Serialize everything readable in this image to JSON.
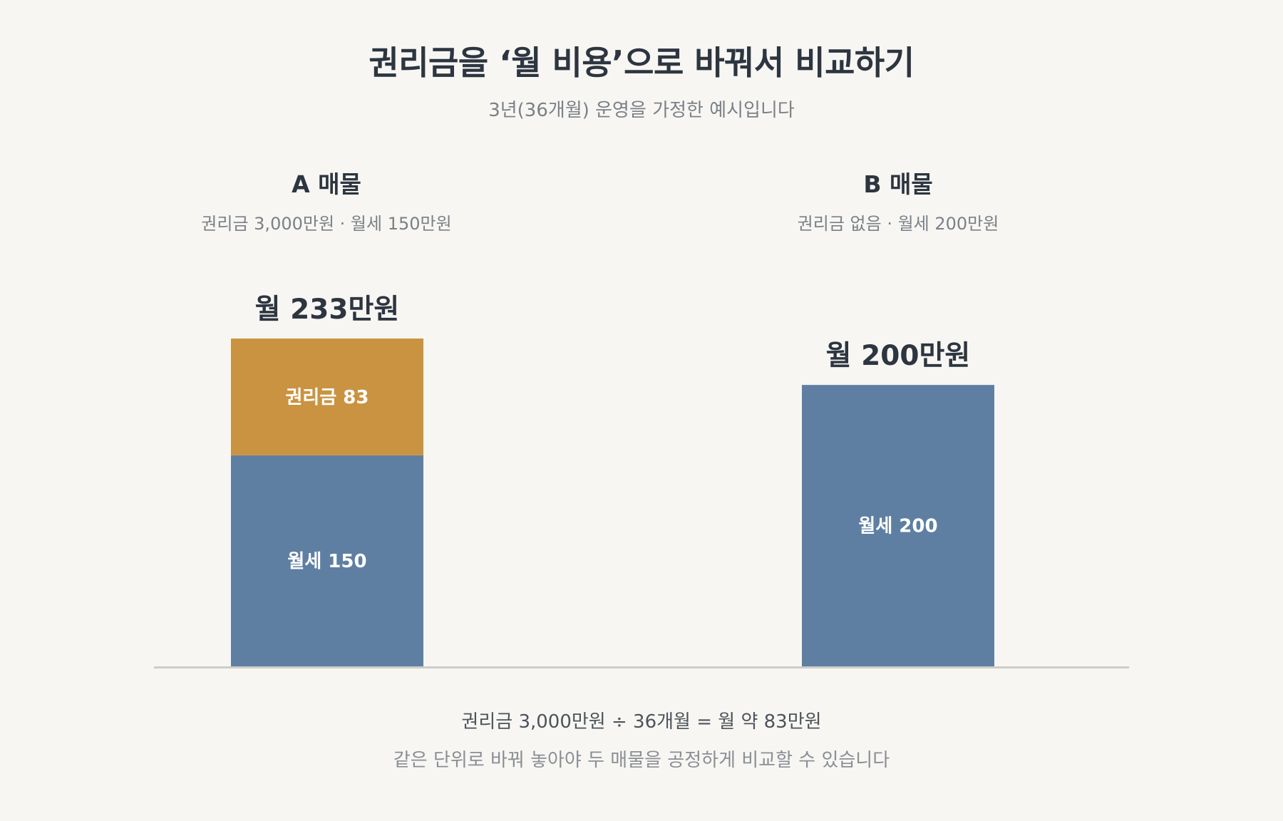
{
  "header": {
    "title": "권리금을 ‘월 비용’으로 바꿔서 비교하기",
    "subtitle": "3년(36개월) 운영을 가정한 예시입니다"
  },
  "columns": [
    {
      "name": "A 매물",
      "desc": "권리금 3,000만원 · 월세 150만원"
    },
    {
      "name": "B 매물",
      "desc": "권리금 없음 · 월세 200만원"
    }
  ],
  "footer": {
    "formula": "권리금 3,000만원 ÷ 36개월 = 월 약 83만원",
    "note": "같은 단위로 바꿔 놓아야 두 매물을 공정하게 비교할 수 있습니다"
  },
  "chart_data": {
    "type": "bar",
    "stacked": true,
    "categories": [
      "A 매물",
      "B 매물"
    ],
    "series": [
      {
        "name": "월세",
        "values": [
          150,
          200
        ],
        "color": "#5e7fa2",
        "labels": [
          "월세 150",
          "월세 200"
        ]
      },
      {
        "name": "권리금",
        "values": [
          83,
          0
        ],
        "color": "#c99341",
        "labels": [
          "권리금 83",
          ""
        ]
      }
    ],
    "totals": [
      233,
      200
    ],
    "total_labels": [
      "월 233만원",
      "월 200만원"
    ],
    "ylim": [
      0,
      233
    ],
    "grid": false,
    "colors": {
      "axis": "#cfcdc8",
      "segment_text": "#ffffff",
      "total_text": "#2d3540"
    }
  }
}
